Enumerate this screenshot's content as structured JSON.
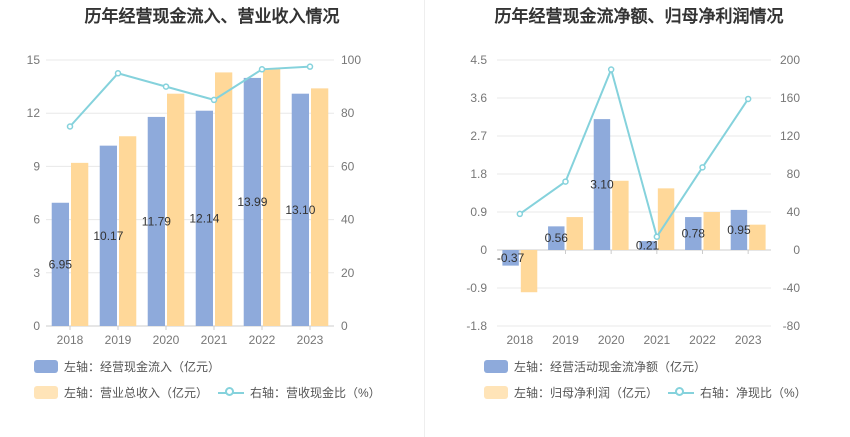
{
  "charts": [
    {
      "title": "历年经营现金流入、营业收入情况",
      "legend": [
        {
          "label": "左轴：经营现金流入（亿元）",
          "color": "#8eaadb",
          "kind": "bar"
        },
        {
          "label": "左轴：营业总收入（亿元）",
          "color": "#ffd899",
          "kind": "bar"
        },
        {
          "label": "右轴：营收现金比（%）",
          "color": "#85d2dc",
          "kind": "line"
        }
      ]
    },
    {
      "title": "历年经营现金流净额、归母净利润情况",
      "legend": [
        {
          "label": "左轴：经营活动现金流净额（亿元）",
          "color": "#8eaadb",
          "kind": "bar"
        },
        {
          "label": "左轴：归母净利润（亿元）",
          "color": "#ffd899",
          "kind": "bar"
        },
        {
          "label": "右轴：净现比（%）",
          "color": "#85d2dc",
          "kind": "line"
        }
      ]
    }
  ],
  "chart_data": [
    {
      "type": "bar",
      "title": "历年经营现金流入、营业收入情况",
      "categories": [
        "2018",
        "2019",
        "2020",
        "2021",
        "2022",
        "2023"
      ],
      "left_axis": {
        "min": 0,
        "max": 15,
        "ticks": [
          0,
          3,
          6,
          9,
          12,
          15
        ]
      },
      "right_axis": {
        "min": 0,
        "max": 100,
        "ticks": [
          0,
          20,
          40,
          60,
          80,
          100
        ]
      },
      "series": [
        {
          "name": "左轴：经营现金流入（亿元）",
          "axis": "left",
          "kind": "bar",
          "color": "#8eaadb",
          "values": [
            6.95,
            10.17,
            11.79,
            12.14,
            13.99,
            13.1
          ],
          "labels": [
            "6.95",
            "10.17",
            "11.79",
            "12.14",
            "13.99",
            "13.10"
          ]
        },
        {
          "name": "左轴：营业总收入（亿元）",
          "axis": "left",
          "kind": "bar",
          "color": "#ffd899",
          "values": [
            9.2,
            10.7,
            13.1,
            14.3,
            14.5,
            13.4
          ]
        },
        {
          "name": "右轴：营收现金比（%）",
          "axis": "right",
          "kind": "line",
          "color": "#85d2dc",
          "values": [
            75,
            95,
            90,
            85,
            96.5,
            97.5
          ]
        }
      ],
      "grid": true
    },
    {
      "type": "bar",
      "title": "历年经营现金流净额、归母净利润情况",
      "categories": [
        "2018",
        "2019",
        "2020",
        "2021",
        "2022",
        "2023"
      ],
      "left_axis": {
        "min": -1.8,
        "max": 4.5,
        "ticks": [
          -1.8,
          -0.9,
          0,
          0.9,
          1.8,
          2.7,
          3.6,
          4.5
        ]
      },
      "right_axis": {
        "min": -80,
        "max": 200,
        "ticks": [
          -80,
          -40,
          0,
          40,
          80,
          120,
          160,
          200
        ]
      },
      "series": [
        {
          "name": "左轴：经营活动现金流净额（亿元）",
          "axis": "left",
          "kind": "bar",
          "color": "#8eaadb",
          "values": [
            -0.37,
            0.56,
            3.1,
            0.21,
            0.78,
            0.95
          ],
          "labels": [
            "-0.37",
            "0.56",
            "3.10",
            "0.21",
            "0.78",
            "0.95"
          ]
        },
        {
          "name": "左轴：归母净利润（亿元）",
          "axis": "left",
          "kind": "bar",
          "color": "#ffd899",
          "values": [
            -1.0,
            0.78,
            1.64,
            1.46,
            0.9,
            0.6
          ]
        },
        {
          "name": "右轴：净现比（%）",
          "axis": "right",
          "kind": "line",
          "color": "#85d2dc",
          "values": [
            38,
            72,
            190,
            14,
            87,
            159
          ]
        }
      ],
      "grid": true
    }
  ]
}
